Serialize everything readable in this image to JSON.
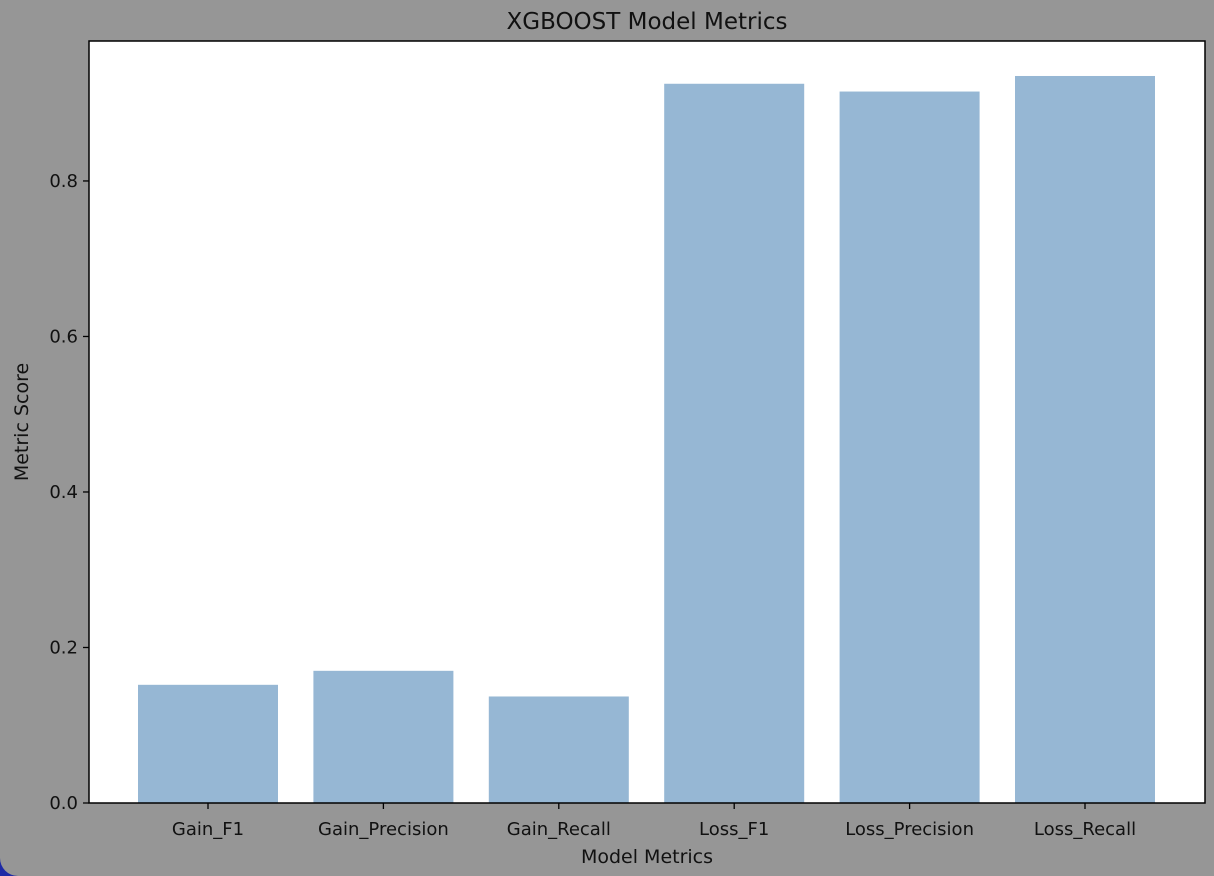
{
  "chart_data": {
    "type": "bar",
    "title": "XGBOOST Model Metrics",
    "xlabel": "Model Metrics",
    "ylabel": "Metric Score",
    "categories": [
      "Gain_F1",
      "Gain_Precision",
      "Gain_Recall",
      "Loss_F1",
      "Loss_Precision",
      "Loss_Recall"
    ],
    "values": [
      0.152,
      0.17,
      0.137,
      0.925,
      0.915,
      0.935
    ],
    "ylim": [
      0,
      0.98
    ],
    "yticks": [
      0.0,
      0.2,
      0.4,
      0.6,
      0.8
    ],
    "ytick_labels": [
      "0.0",
      "0.2",
      "0.4",
      "0.6",
      "0.8"
    ],
    "grid": false,
    "legend": "none",
    "bar_color": "#96b7d4",
    "background_color": "#969696",
    "plot_background_color": "#ffffff"
  }
}
